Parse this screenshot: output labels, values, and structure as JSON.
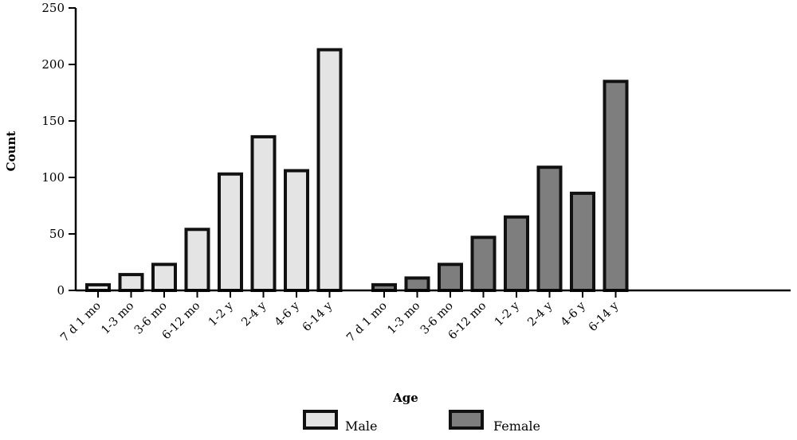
{
  "chart_data": {
    "type": "bar",
    "groups": [
      {
        "name": "Male",
        "color": "#e3e4e3",
        "categories": [
          "7 d 1 mo",
          "1-3 mo",
          "3-6 mo",
          "6-12 mo",
          "1-2 y",
          "2-4 y",
          "4-6 y",
          "6-14 y"
        ],
        "values": [
          5,
          14,
          23,
          54,
          103,
          136,
          106,
          213
        ]
      },
      {
        "name": "Female",
        "color": "#7d7e7d",
        "categories": [
          "7 d 1 mo",
          "1-3 mo",
          "3-6 mo",
          "6-12 mo",
          "1-2 y",
          "2-4 y",
          "4-6 y",
          "6-14 y"
        ],
        "values": [
          5,
          11,
          23,
          47,
          65,
          109,
          86,
          185
        ]
      }
    ],
    "xlabel": "Age",
    "ylabel": "Count",
    "ylim": [
      0,
      250
    ],
    "yticks": [
      0,
      50,
      100,
      150,
      200,
      250
    ],
    "grid": false,
    "legend": {
      "position": "bottom-center",
      "entries": [
        {
          "label": "Male",
          "color": "#e3e4e3"
        },
        {
          "label": "Female",
          "color": "#7d7e7d"
        }
      ]
    },
    "bar_edge_color": "#111111"
  }
}
